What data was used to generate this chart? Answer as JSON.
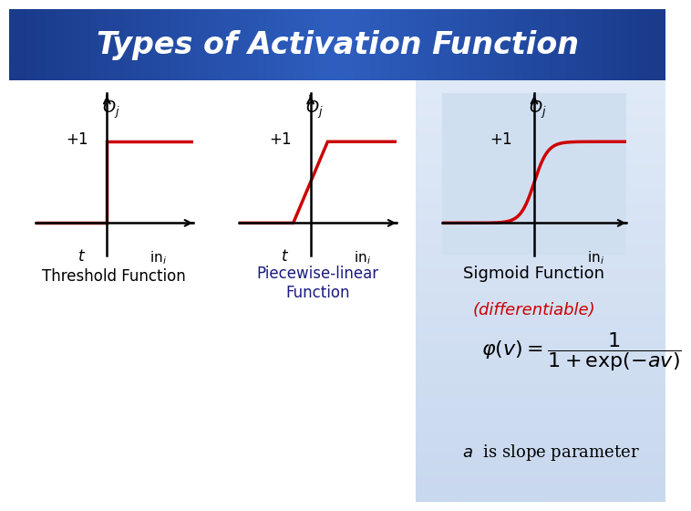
{
  "title": "Types of Activation Function",
  "title_bg_top": "#2255aa",
  "title_bg_bot": "#1a3070",
  "title_text_color": "white",
  "bg_color": "#ffffff",
  "sigmoid_bg_color": "#d0dff0",
  "line_color": "#cc0000",
  "axis_color": "#000000",
  "label_color": "#000000",
  "label_color2": "#1a1a80",
  "graph1_label": "Threshold Function",
  "graph2_label": "Piecewise-linear\nFunction",
  "graph3_label": "Sigmoid Function",
  "graph3_sublabel": "(differentiable)",
  "graph3_sublabel_color": "#cc0000",
  "formula": "$\\varphi(v) = \\dfrac{1}{1+\\exp(-av)}$",
  "slope_label": "$a$  is slope parameter"
}
